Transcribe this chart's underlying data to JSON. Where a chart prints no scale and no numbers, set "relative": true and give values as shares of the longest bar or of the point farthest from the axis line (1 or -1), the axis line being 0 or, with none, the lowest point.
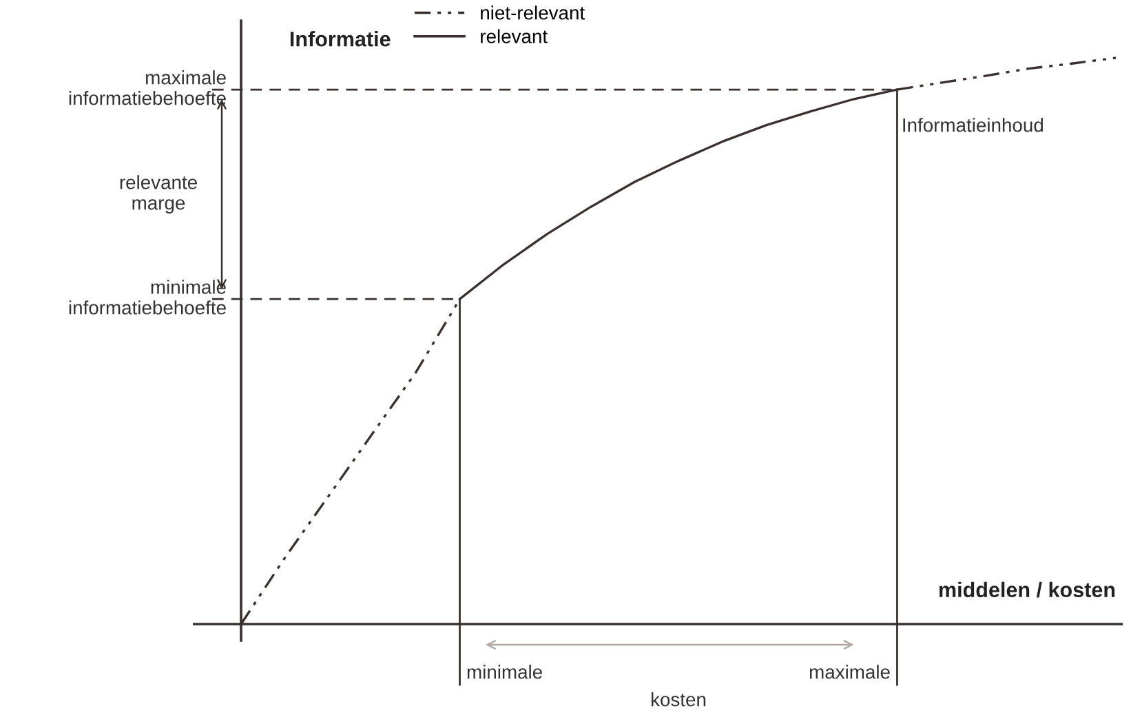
{
  "chart_data": {
    "type": "line",
    "relative": true,
    "ylabel": "Informatie",
    "xlabel": "middelen / kosten",
    "categories": [
      null,
      null,
      null,
      null,
      null,
      null,
      null,
      null,
      null,
      null,
      null,
      null,
      null,
      null,
      null,
      null,
      null,
      null,
      null,
      null,
      null
    ],
    "series": [
      {
        "name": "niet-relevant",
        "color": "#3a3030",
        "line_style": "dashed",
        "values": [
          0,
          0.117,
          0.226,
          0.336,
          0.445,
          0.574,
          null,
          null,
          null,
          null,
          null,
          null,
          null,
          null,
          null,
          null,
          null,
          null,
          null,
          null,
          null
        ]
      },
      {
        "color": "#3a3030",
        "line_style": "dashed",
        "values": [
          null,
          null,
          null,
          null,
          null,
          null,
          null,
          null,
          null,
          null,
          null,
          null,
          null,
          null,
          null,
          0.944,
          0.956,
          0.968,
          0.981,
          0.99,
          1
        ]
      },
      {
        "name": "relevant",
        "color": "#3a3030",
        "line_style": "solid",
        "values": [
          null,
          null,
          null,
          null,
          null,
          0.574,
          0.635,
          0.689,
          0.737,
          0.781,
          0.818,
          0.852,
          0.881,
          0.905,
          0.927,
          0.944,
          null,
          null,
          null,
          null,
          null
        ]
      }
    ],
    "ref_lines": [
      {
        "axis": "y",
        "value": 0.944,
        "label": "maximale\ninformatiebehoefte",
        "line_style": "dashed",
        "color": "#3a3030"
      },
      {
        "axis": "y",
        "value": 0.574,
        "label": "minimale\ninformatiebehoefte",
        "line_style": "dashed",
        "color": "#3a3030"
      }
    ],
    "annotations": [
      "relevante\nmarge",
      "kosten",
      "Informatieinhoud",
      "minimale",
      "maximale"
    ],
    "legend": "top",
    "grid": false,
    "marker": "none"
  }
}
